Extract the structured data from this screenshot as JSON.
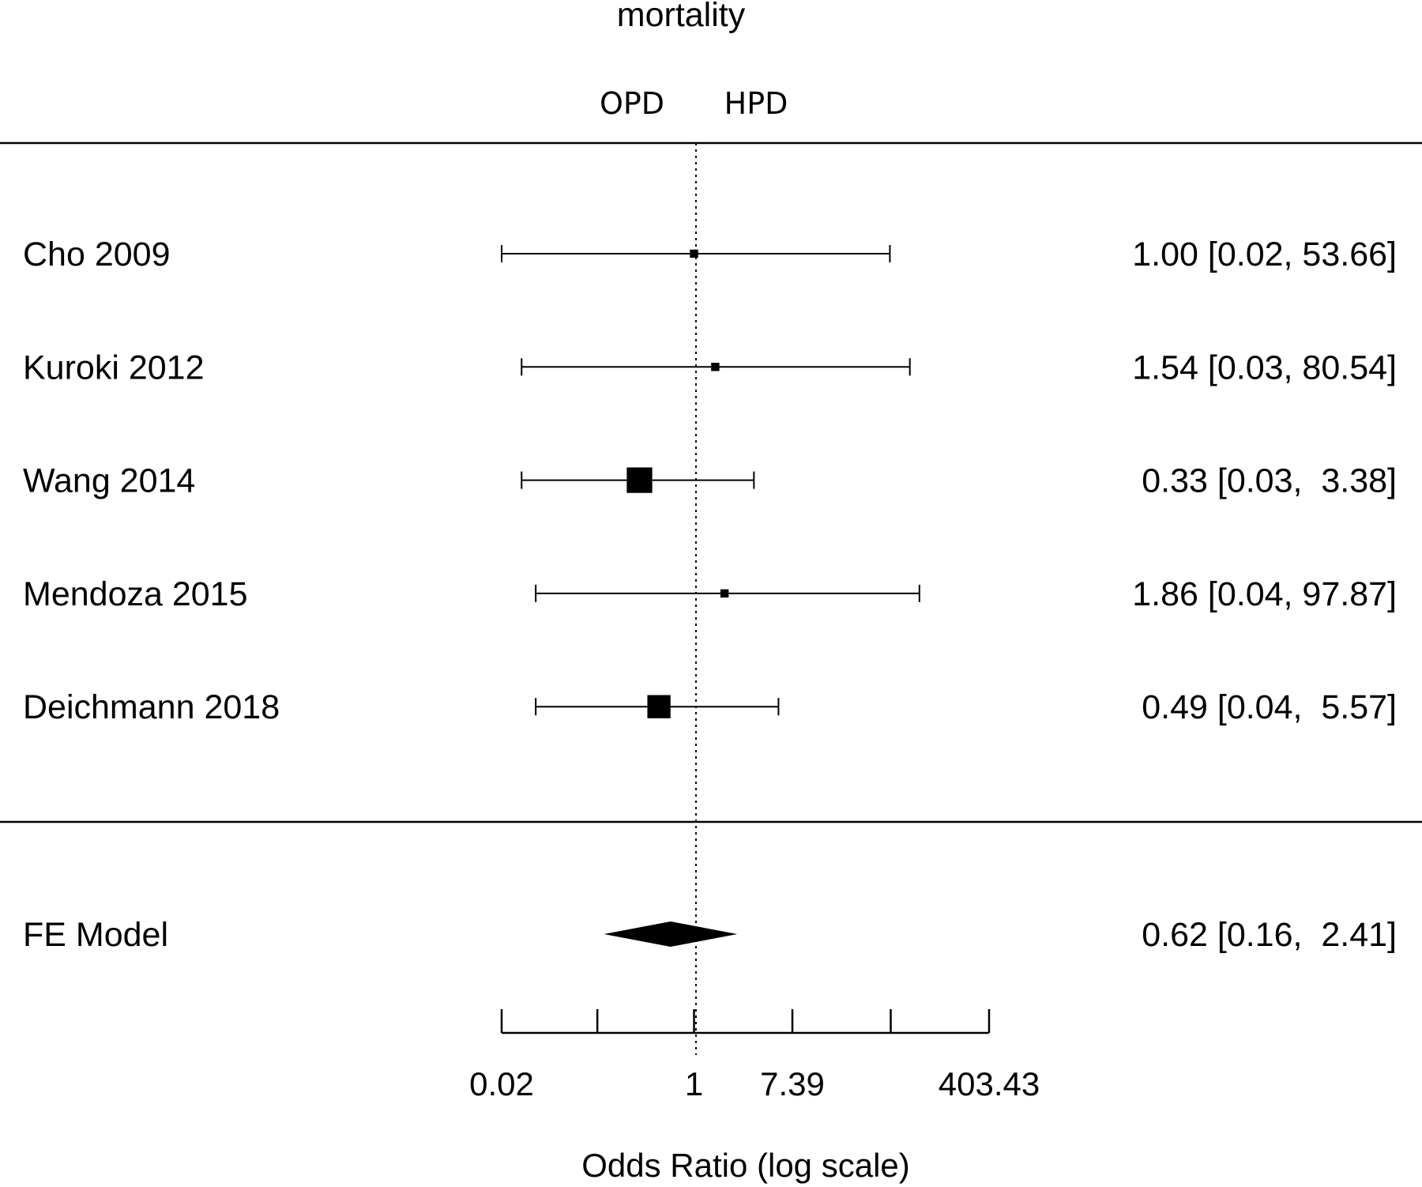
{
  "chart_data": {
    "type": "forest",
    "title": "mortality",
    "direction_labels": {
      "left": "OPD",
      "right": "HPD"
    },
    "xlabel": "Odds Ratio (log scale)",
    "x_scale": "log",
    "xlim": [
      0.02,
      403.43
    ],
    "x_ticks": [
      0.02,
      0.14,
      1,
      7.39,
      54.6,
      403.43
    ],
    "x_tick_labels": [
      "0.02",
      "",
      "1",
      "7.39",
      "",
      "403.43"
    ],
    "reference_line": 1,
    "studies": [
      {
        "label": "Cho 2009",
        "or": 1.0,
        "lower": 0.02,
        "upper": 53.66,
        "weight": 0.9,
        "text": "1.00 [0.02, 53.66]"
      },
      {
        "label": "Kuroki 2012",
        "or": 1.54,
        "lower": 0.03,
        "upper": 80.54,
        "weight": 0.9,
        "text": "1.54 [0.03, 80.54]"
      },
      {
        "label": "Wang 2014",
        "or": 0.33,
        "lower": 0.03,
        "upper": 3.38,
        "weight": 8.6,
        "text": "0.33 [0.03,  3.38]"
      },
      {
        "label": "Mendoza 2015",
        "or": 1.86,
        "lower": 0.04,
        "upper": 97.87,
        "weight": 0.9,
        "text": "1.86 [0.04, 97.87]"
      },
      {
        "label": "Deichmann 2018",
        "or": 0.49,
        "lower": 0.04,
        "upper": 5.57,
        "weight": 7.1,
        "text": "0.49 [0.04,  5.57]"
      }
    ],
    "summary": {
      "label": "FE Model",
      "or": 0.62,
      "lower": 0.16,
      "upper": 2.41,
      "text": "0.62 [0.16,  2.41]"
    }
  }
}
